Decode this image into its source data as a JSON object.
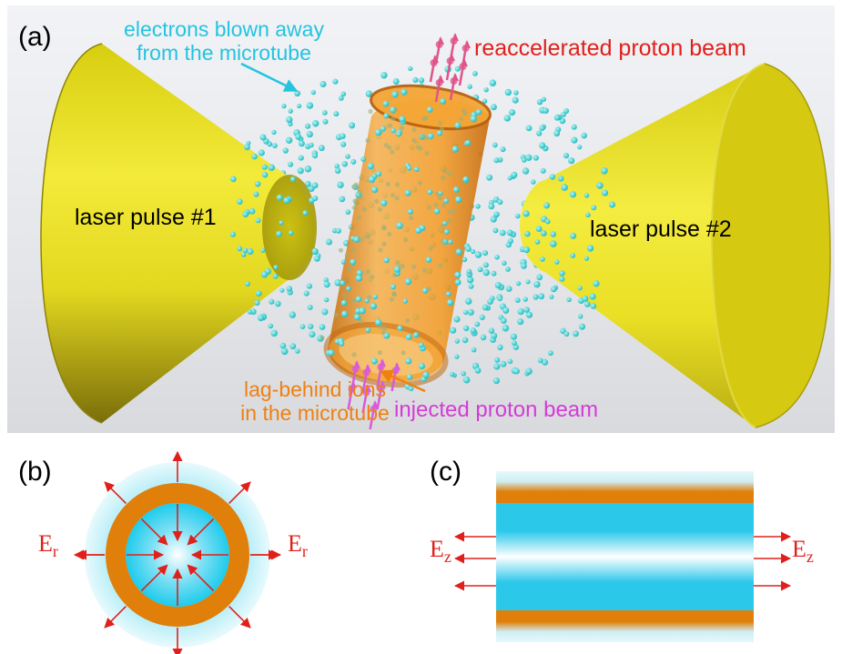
{
  "panel_a": {
    "tag": "(a)",
    "electrons_line1": "electrons blown away",
    "electrons_line2": "from the microtube",
    "reaccel": "reaccelerated proton beam",
    "laser1": "laser pulse #1",
    "laser2": "laser pulse #2",
    "ions_line1": "lag-behind ions",
    "ions_line2": "in the microtube",
    "injected": "injected proton beam"
  },
  "panel_b": {
    "tag": "(b)",
    "field_left": "E",
    "field_left_sub": "r",
    "field_right": "E",
    "field_right_sub": "r"
  },
  "panel_c": {
    "tag": "(c)",
    "field_left": "E",
    "field_left_sub": "z",
    "field_right": "E",
    "field_right_sub": "z"
  },
  "colors": {
    "laser": "#e9e02a",
    "tube": "#f39a1e",
    "electron": "#33d6d6",
    "label_cyan": "#22c4e0",
    "label_red": "#e0201b",
    "label_orange": "#f08010",
    "label_magenta": "#d63bd6",
    "ring": "#e07f0a",
    "core": "#2fd0ee"
  }
}
